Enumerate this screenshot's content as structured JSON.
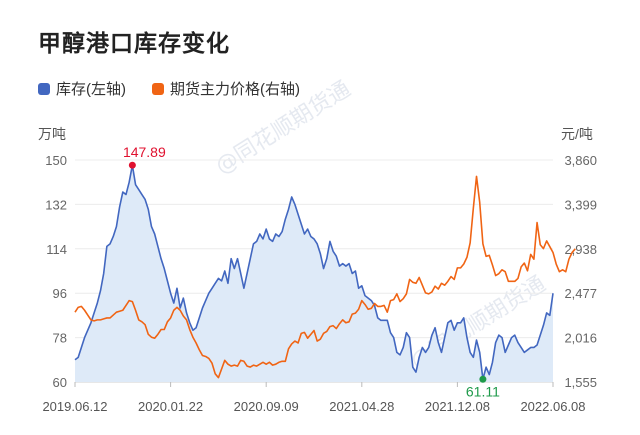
{
  "title": "甲醇港口库存变化",
  "watermark": "@同花顺期货通",
  "colors": {
    "inventory": "#4267c0",
    "price": "#f06414",
    "area": "#deeaf8",
    "max_marker": "#e0112f",
    "min_marker": "#1e9a4a"
  },
  "chart_data": {
    "type": "line",
    "title": "甲醇港口库存变化",
    "legend_position": "top-left",
    "left_unit": "万吨",
    "right_unit": "元/吨",
    "ylim_left": [
      60,
      150
    ],
    "ylim_right": [
      1555,
      3860
    ],
    "yticks_left": [
      "150",
      "132",
      "114",
      "96",
      "78",
      "60"
    ],
    "yticks_right": [
      "3,860",
      "3,399",
      "2,938",
      "2,477",
      "2,016",
      "1,555"
    ],
    "xtick_labels": [
      "2019.06.12",
      "2020.01.22",
      "2020.09.09",
      "2021.04.28",
      "2021.12.08",
      "2022.06.08"
    ],
    "x_index_range": [
      0,
      150
    ],
    "grid": {
      "horizontal": true,
      "vertical_ticks": true
    },
    "series": [
      {
        "name": "库存(左轴)",
        "axis": "left",
        "type": "area",
        "points": [
          [
            0,
            69
          ],
          [
            1,
            70
          ],
          [
            2,
            74
          ],
          [
            3,
            78
          ],
          [
            4,
            81
          ],
          [
            5,
            84
          ],
          [
            6,
            88
          ],
          [
            7,
            92
          ],
          [
            8,
            97
          ],
          [
            9,
            104
          ],
          [
            10,
            115
          ],
          [
            11,
            116
          ],
          [
            12,
            119
          ],
          [
            13,
            123
          ],
          [
            14,
            131
          ],
          [
            15,
            137
          ],
          [
            16,
            136
          ],
          [
            17,
            141
          ],
          [
            18,
            147.89
          ],
          [
            19,
            140
          ],
          [
            20,
            138
          ],
          [
            21,
            136
          ],
          [
            22,
            134
          ],
          [
            23,
            130
          ],
          [
            24,
            123
          ],
          [
            25,
            120
          ],
          [
            26,
            115
          ],
          [
            27,
            110
          ],
          [
            28,
            106
          ],
          [
            29,
            101
          ],
          [
            30,
            96
          ],
          [
            31,
            92
          ],
          [
            32,
            98
          ],
          [
            33,
            90
          ],
          [
            34,
            94
          ],
          [
            35,
            88
          ],
          [
            36,
            84
          ],
          [
            37,
            81
          ],
          [
            38,
            82
          ],
          [
            39,
            86
          ],
          [
            40,
            90
          ],
          [
            41,
            93
          ],
          [
            42,
            96
          ],
          [
            43,
            98
          ],
          [
            44,
            100
          ],
          [
            45,
            102
          ],
          [
            46,
            101
          ],
          [
            47,
            105
          ],
          [
            48,
            100
          ],
          [
            49,
            110
          ],
          [
            50,
            106
          ],
          [
            51,
            110
          ],
          [
            52,
            104
          ],
          [
            53,
            98
          ],
          [
            54,
            104
          ],
          [
            55,
            110
          ],
          [
            56,
            116
          ],
          [
            57,
            117
          ],
          [
            58,
            120
          ],
          [
            59,
            118
          ],
          [
            60,
            122
          ],
          [
            61,
            118
          ],
          [
            62,
            117
          ],
          [
            63,
            120
          ],
          [
            64,
            119
          ],
          [
            65,
            121
          ],
          [
            66,
            126
          ],
          [
            67,
            130
          ],
          [
            68,
            135
          ],
          [
            69,
            132
          ],
          [
            70,
            128
          ],
          [
            71,
            124
          ],
          [
            72,
            120
          ],
          [
            73,
            122
          ],
          [
            74,
            119
          ],
          [
            75,
            118
          ],
          [
            76,
            116
          ],
          [
            77,
            112
          ],
          [
            78,
            106
          ],
          [
            79,
            110
          ],
          [
            80,
            117
          ],
          [
            81,
            113
          ],
          [
            82,
            111
          ],
          [
            83,
            107
          ],
          [
            84,
            108
          ],
          [
            85,
            107
          ],
          [
            86,
            108
          ],
          [
            87,
            104
          ],
          [
            88,
            105
          ],
          [
            89,
            98
          ],
          [
            90,
            99
          ],
          [
            91,
            95
          ],
          [
            92,
            94
          ],
          [
            93,
            93
          ],
          [
            94,
            91
          ],
          [
            95,
            86
          ],
          [
            96,
            85
          ],
          [
            97,
            85
          ],
          [
            98,
            85
          ],
          [
            99,
            80
          ],
          [
            100,
            78
          ],
          [
            101,
            72
          ],
          [
            102,
            71
          ],
          [
            103,
            74
          ],
          [
            104,
            80
          ],
          [
            105,
            78
          ],
          [
            106,
            66
          ],
          [
            107,
            64
          ],
          [
            108,
            70
          ],
          [
            109,
            74
          ],
          [
            110,
            72
          ],
          [
            111,
            74
          ],
          [
            112,
            79
          ],
          [
            113,
            82
          ],
          [
            114,
            76
          ],
          [
            115,
            72
          ],
          [
            116,
            78
          ],
          [
            117,
            84
          ],
          [
            118,
            85
          ],
          [
            119,
            81
          ],
          [
            120,
            84
          ],
          [
            121,
            84
          ],
          [
            122,
            86
          ],
          [
            123,
            78
          ],
          [
            124,
            72
          ],
          [
            125,
            70
          ],
          [
            126,
            77
          ],
          [
            127,
            72
          ],
          [
            128,
            61.11
          ],
          [
            129,
            66
          ],
          [
            130,
            63
          ],
          [
            131,
            68
          ],
          [
            132,
            76
          ],
          [
            133,
            79
          ],
          [
            134,
            78
          ],
          [
            135,
            72
          ],
          [
            136,
            75
          ],
          [
            137,
            78
          ],
          [
            138,
            79
          ],
          [
            139,
            76
          ],
          [
            140,
            74
          ],
          [
            141,
            72
          ],
          [
            142,
            73
          ],
          [
            143,
            74
          ],
          [
            144,
            74
          ],
          [
            145,
            75
          ],
          [
            146,
            79
          ],
          [
            147,
            83
          ],
          [
            148,
            88
          ],
          [
            149,
            87
          ],
          [
            150,
            96
          ]
        ]
      },
      {
        "name": "期货主力价格(右轴)",
        "axis": "right",
        "type": "line",
        "points": [
          [
            0,
            2280
          ],
          [
            1,
            2330
          ],
          [
            2,
            2340
          ],
          [
            3,
            2300
          ],
          [
            4,
            2250
          ],
          [
            5,
            2200
          ],
          [
            6,
            2190
          ],
          [
            7,
            2200
          ],
          [
            8,
            2200
          ],
          [
            9,
            2210
          ],
          [
            10,
            2220
          ],
          [
            11,
            2220
          ],
          [
            12,
            2250
          ],
          [
            13,
            2280
          ],
          [
            14,
            2290
          ],
          [
            15,
            2300
          ],
          [
            16,
            2350
          ],
          [
            17,
            2400
          ],
          [
            18,
            2390
          ],
          [
            19,
            2300
          ],
          [
            20,
            2200
          ],
          [
            21,
            2180
          ],
          [
            22,
            2150
          ],
          [
            23,
            2050
          ],
          [
            24,
            2020
          ],
          [
            25,
            2010
          ],
          [
            26,
            2050
          ],
          [
            27,
            2100
          ],
          [
            28,
            2100
          ],
          [
            29,
            2180
          ],
          [
            30,
            2220
          ],
          [
            31,
            2300
          ],
          [
            32,
            2330
          ],
          [
            33,
            2300
          ],
          [
            34,
            2240
          ],
          [
            35,
            2200
          ],
          [
            36,
            2100
          ],
          [
            37,
            2020
          ],
          [
            38,
            1960
          ],
          [
            39,
            1890
          ],
          [
            40,
            1830
          ],
          [
            41,
            1820
          ],
          [
            42,
            1800
          ],
          [
            43,
            1750
          ],
          [
            44,
            1640
          ],
          [
            45,
            1600
          ],
          [
            46,
            1690
          ],
          [
            47,
            1780
          ],
          [
            48,
            1740
          ],
          [
            49,
            1720
          ],
          [
            50,
            1730
          ],
          [
            51,
            1720
          ],
          [
            52,
            1780
          ],
          [
            53,
            1770
          ],
          [
            54,
            1720
          ],
          [
            55,
            1710
          ],
          [
            56,
            1730
          ],
          [
            57,
            1720
          ],
          [
            58,
            1740
          ],
          [
            59,
            1760
          ],
          [
            60,
            1740
          ],
          [
            61,
            1760
          ],
          [
            62,
            1730
          ],
          [
            63,
            1740
          ],
          [
            64,
            1760
          ],
          [
            65,
            1770
          ],
          [
            66,
            1770
          ],
          [
            67,
            1900
          ],
          [
            68,
            1950
          ],
          [
            69,
            1980
          ],
          [
            70,
            1960
          ],
          [
            71,
            2060
          ],
          [
            72,
            2070
          ],
          [
            73,
            2010
          ],
          [
            74,
            2050
          ],
          [
            75,
            2090
          ],
          [
            76,
            1980
          ],
          [
            77,
            2000
          ],
          [
            78,
            2060
          ],
          [
            79,
            2080
          ],
          [
            80,
            2130
          ],
          [
            81,
            2140
          ],
          [
            82,
            2110
          ],
          [
            83,
            2160
          ],
          [
            84,
            2200
          ],
          [
            85,
            2170
          ],
          [
            86,
            2180
          ],
          [
            87,
            2260
          ],
          [
            88,
            2270
          ],
          [
            89,
            2310
          ],
          [
            90,
            2400
          ],
          [
            91,
            2360
          ],
          [
            92,
            2310
          ],
          [
            93,
            2320
          ],
          [
            94,
            2370
          ],
          [
            95,
            2340
          ],
          [
            96,
            2340
          ],
          [
            97,
            2350
          ],
          [
            98,
            2280
          ],
          [
            99,
            2400
          ],
          [
            100,
            2410
          ],
          [
            101,
            2470
          ],
          [
            102,
            2390
          ],
          [
            103,
            2420
          ],
          [
            104,
            2470
          ],
          [
            105,
            2620
          ],
          [
            106,
            2590
          ],
          [
            107,
            2580
          ],
          [
            108,
            2640
          ],
          [
            109,
            2560
          ],
          [
            110,
            2480
          ],
          [
            111,
            2470
          ],
          [
            112,
            2490
          ],
          [
            113,
            2550
          ],
          [
            114,
            2520
          ],
          [
            115,
            2580
          ],
          [
            116,
            2560
          ],
          [
            117,
            2600
          ],
          [
            118,
            2650
          ],
          [
            119,
            2620
          ],
          [
            120,
            2740
          ],
          [
            121,
            2740
          ],
          [
            122,
            2780
          ],
          [
            123,
            2850
          ],
          [
            124,
            3000
          ],
          [
            125,
            3360
          ],
          [
            126,
            3690
          ],
          [
            127,
            3420
          ],
          [
            128,
            2990
          ],
          [
            129,
            2860
          ],
          [
            130,
            2870
          ],
          [
            131,
            2770
          ],
          [
            132,
            2660
          ],
          [
            133,
            2680
          ],
          [
            134,
            2720
          ],
          [
            135,
            2700
          ],
          [
            136,
            2600
          ],
          [
            137,
            2600
          ],
          [
            138,
            2600
          ],
          [
            139,
            2630
          ],
          [
            140,
            2750
          ],
          [
            141,
            2790
          ],
          [
            142,
            2710
          ],
          [
            143,
            2880
          ],
          [
            144,
            2830
          ],
          [
            145,
            3210
          ],
          [
            146,
            2980
          ],
          [
            147,
            2940
          ],
          [
            148,
            3020
          ],
          [
            149,
            2960
          ],
          [
            150,
            2900
          ],
          [
            151,
            2780
          ],
          [
            152,
            2700
          ],
          [
            153,
            2720
          ],
          [
            154,
            2700
          ],
          [
            155,
            2830
          ],
          [
            156,
            2900
          ],
          [
            157,
            2938
          ]
        ]
      }
    ],
    "annotations": [
      {
        "label": "147.89",
        "point": [
          18,
          147.89
        ],
        "kind": "max"
      },
      {
        "label": "61.11",
        "point": [
          128,
          61.11
        ],
        "kind": "min"
      }
    ]
  }
}
